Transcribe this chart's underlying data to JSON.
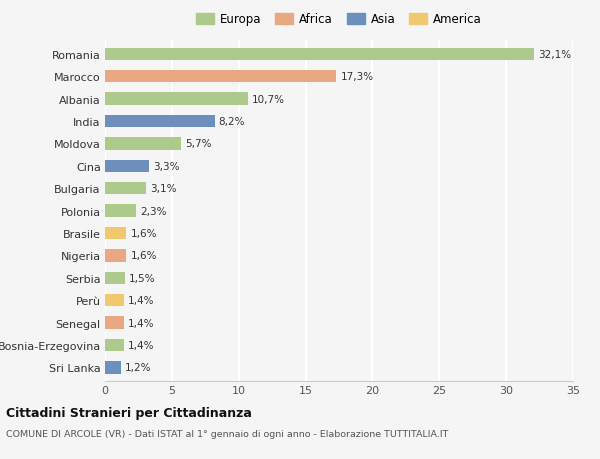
{
  "countries": [
    "Romania",
    "Marocco",
    "Albania",
    "India",
    "Moldova",
    "Cina",
    "Bulgaria",
    "Polonia",
    "Brasile",
    "Nigeria",
    "Serbia",
    "Perù",
    "Senegal",
    "Bosnia-Erzegovina",
    "Sri Lanka"
  ],
  "values": [
    32.1,
    17.3,
    10.7,
    8.2,
    5.7,
    3.3,
    3.1,
    2.3,
    1.6,
    1.6,
    1.5,
    1.4,
    1.4,
    1.4,
    1.2
  ],
  "labels": [
    "32,1%",
    "17,3%",
    "10,7%",
    "8,2%",
    "5,7%",
    "3,3%",
    "3,1%",
    "2,3%",
    "1,6%",
    "1,6%",
    "1,5%",
    "1,4%",
    "1,4%",
    "1,4%",
    "1,2%"
  ],
  "continents": [
    "Europa",
    "Africa",
    "Europa",
    "Asia",
    "Europa",
    "Asia",
    "Europa",
    "Europa",
    "America",
    "Africa",
    "Europa",
    "America",
    "Africa",
    "Europa",
    "Asia"
  ],
  "colors": {
    "Europa": "#adc98c",
    "Africa": "#e8a882",
    "Asia": "#6d8fbe",
    "America": "#f0c96e"
  },
  "legend_order": [
    "Europa",
    "Africa",
    "Asia",
    "America"
  ],
  "background_color": "#f5f5f5",
  "grid_color": "#ffffff",
  "title1": "Cittadini Stranieri per Cittadinanza",
  "title2": "COMUNE DI ARCOLE (VR) - Dati ISTAT al 1° gennaio di ogni anno - Elaborazione TUTTITALIA.IT",
  "xlim": [
    0,
    35
  ],
  "xticks": [
    0,
    5,
    10,
    15,
    20,
    25,
    30,
    35
  ],
  "bar_height": 0.55
}
